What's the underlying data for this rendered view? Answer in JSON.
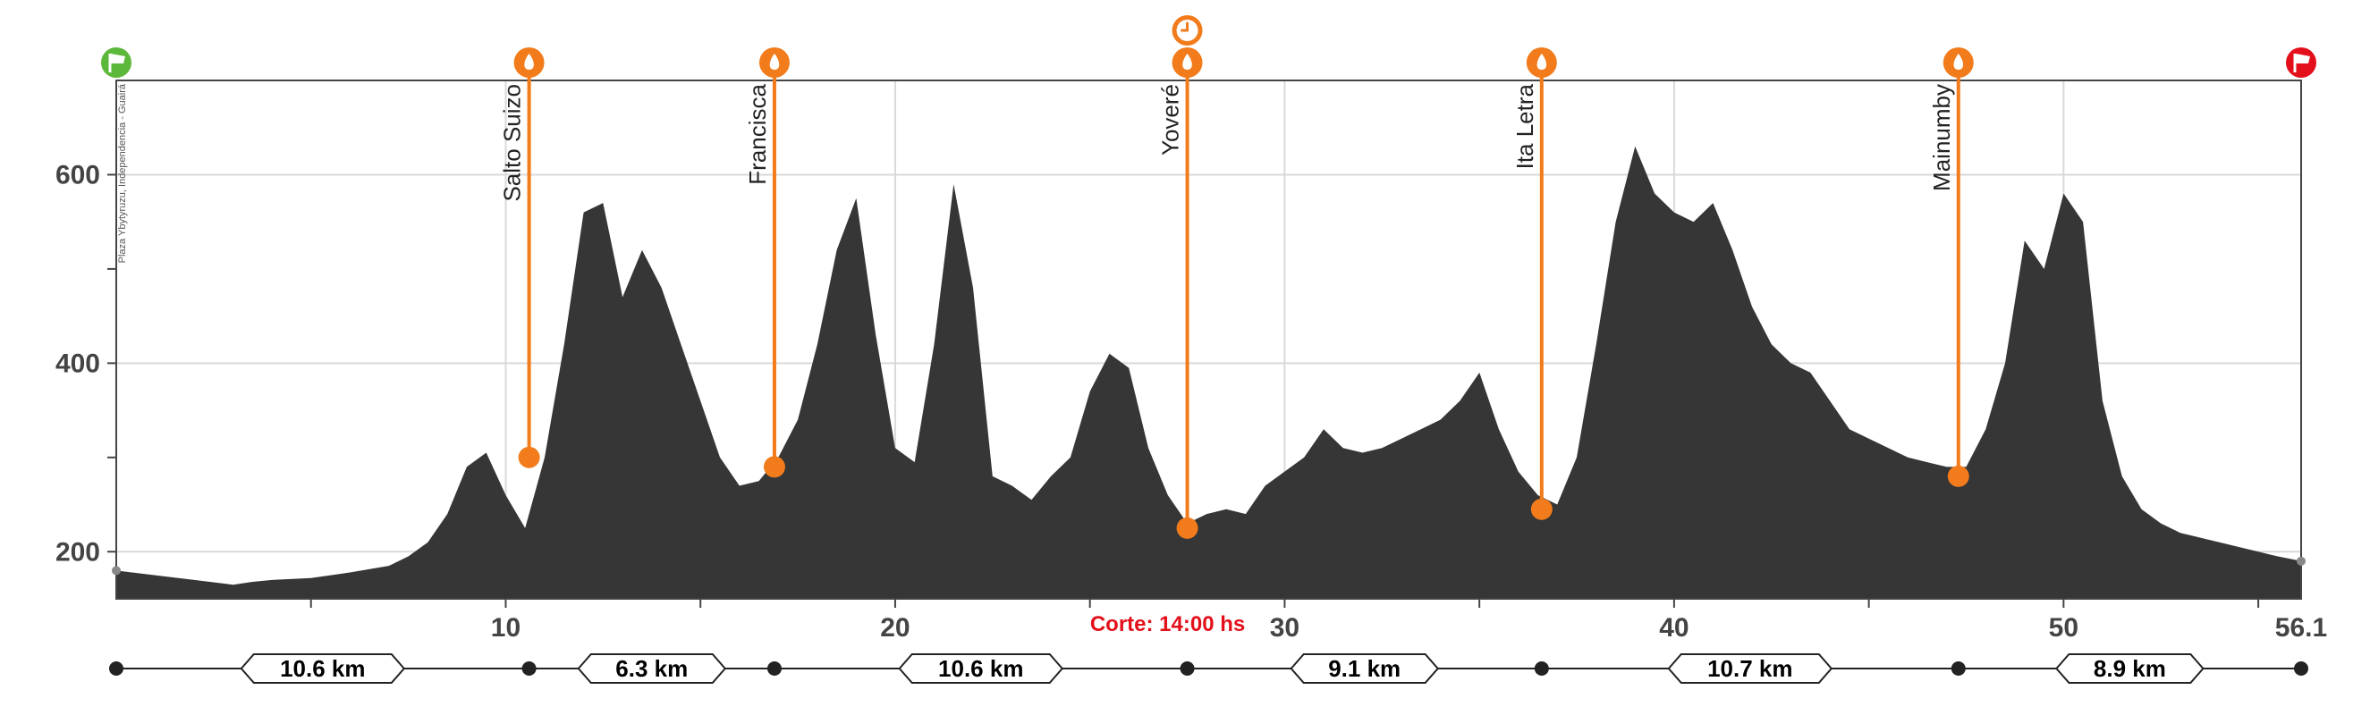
{
  "colors": {
    "profile": "#363636",
    "water": "#f27c1c",
    "start": "#5cb83a",
    "finish": "#e3101b",
    "cutoff_text": "#e3101b",
    "grid": "#d9d9d9",
    "axis_text": "#444444"
  },
  "icons": {
    "start": "green-flag-icon",
    "finish": "red-flag-icon",
    "water": "water-drop-icon",
    "cutoff": "clock-icon"
  },
  "chart_data": {
    "type": "area",
    "title": "",
    "xlabel": "",
    "ylabel": "",
    "xlim": [
      0,
      56.1
    ],
    "ylim": [
      150,
      700
    ],
    "grid": true,
    "x_ticks": [
      10,
      20,
      30,
      40,
      50
    ],
    "x_end_label": "56.1",
    "y_ticks": [
      200,
      400,
      600
    ],
    "start_label": "Plaza Ybytyruzu, Independencia - Guairá",
    "cutoff_text": "Corte: 14:00 hs",
    "cutoff_km": 27.5,
    "series": [
      {
        "x": [
          0,
          1,
          2,
          3,
          3.5,
          4,
          5,
          6,
          7,
          7.5,
          8,
          8.5,
          9,
          9.5,
          10,
          10.5,
          11,
          11.5,
          12,
          12.5,
          13,
          13.5,
          14,
          14.5,
          15,
          15.5,
          16,
          16.5,
          17,
          17.5,
          18,
          18.5,
          19,
          19.5,
          20,
          20.5,
          21,
          21.5,
          22,
          22.5,
          23,
          23.5,
          24,
          24.5,
          25,
          25.5,
          26,
          26.5,
          27,
          27.5,
          28,
          28.5,
          29,
          29.5,
          30,
          30.5,
          31,
          31.5,
          32,
          32.5,
          33,
          33.5,
          34,
          34.5,
          35,
          35.5,
          36,
          36.5,
          37,
          37.5,
          38,
          38.5,
          39,
          39.5,
          40,
          40.5,
          41,
          41.5,
          42,
          42.5,
          43,
          43.5,
          44,
          44.5,
          45,
          45.5,
          46,
          46.5,
          47,
          47.5,
          48,
          48.5,
          49,
          49.5,
          50,
          50.5,
          51,
          51.5,
          52,
          52.5,
          53,
          53.5,
          54,
          54.5,
          55,
          55.5,
          56.1
        ],
        "y": [
          180,
          175,
          170,
          165,
          168,
          170,
          172,
          178,
          185,
          195,
          210,
          240,
          290,
          305,
          260,
          225,
          300,
          420,
          560,
          570,
          470,
          520,
          480,
          420,
          360,
          300,
          270,
          275,
          300,
          340,
          420,
          520,
          575,
          430,
          310,
          295,
          420,
          590,
          480,
          280,
          270,
          255,
          280,
          300,
          370,
          410,
          395,
          310,
          260,
          230,
          240,
          245,
          240,
          270,
          285,
          300,
          330,
          310,
          305,
          310,
          320,
          330,
          340,
          360,
          390,
          330,
          285,
          260,
          250,
          300,
          420,
          550,
          630,
          580,
          560,
          550,
          570,
          520,
          460,
          420,
          400,
          390,
          360,
          330,
          320,
          310,
          300,
          295,
          290,
          290,
          330,
          400,
          530,
          500,
          580,
          550,
          360,
          280,
          245,
          230,
          220,
          215,
          210,
          205,
          200,
          195,
          190
        ]
      }
    ],
    "waypoints": [
      {
        "name": "Salto Suizo",
        "km": 10.6,
        "elev": 300
      },
      {
        "name": "Francisca",
        "km": 16.9,
        "elev": 290
      },
      {
        "name": "Yoveré",
        "km": 27.5,
        "elev": 225
      },
      {
        "name": "Ita Letra",
        "km": 36.6,
        "elev": 245
      },
      {
        "name": "Mainumby",
        "km": 47.3,
        "elev": 280
      }
    ],
    "segments": [
      {
        "label": "10.6 km",
        "from": 0,
        "to": 10.6
      },
      {
        "label": "6.3 km",
        "from": 10.6,
        "to": 16.9
      },
      {
        "label": "10.6 km",
        "from": 16.9,
        "to": 27.5
      },
      {
        "label": "9.1 km",
        "from": 27.5,
        "to": 36.6
      },
      {
        "label": "10.7 km",
        "from": 36.6,
        "to": 47.3
      },
      {
        "label": "8.9 km",
        "from": 47.3,
        "to": 56.1
      }
    ]
  }
}
